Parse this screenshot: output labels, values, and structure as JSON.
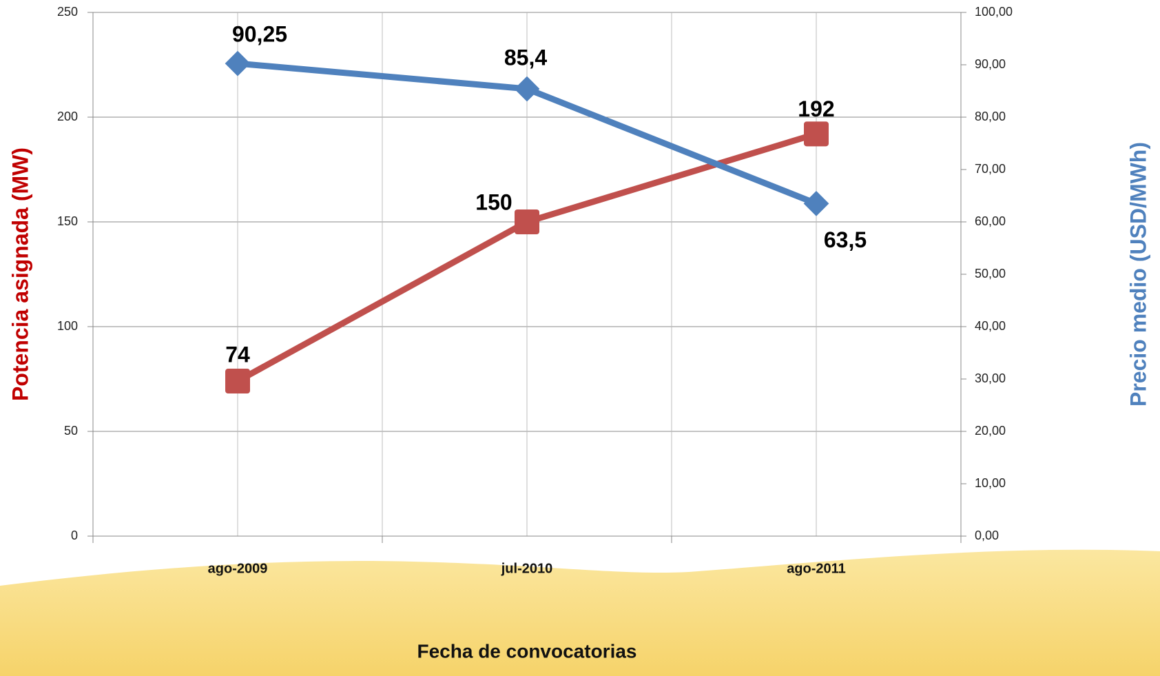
{
  "chart_data": {
    "type": "line",
    "categories": [
      "ago-2009",
      "jul-2010",
      "ago-2011"
    ],
    "xlabel": "Fecha de convocatorias",
    "ylabel": "Potencia asignada (MW)",
    "y2label": "Precio medio (USD/MWh)",
    "ylim": [
      0,
      250
    ],
    "yticks": [
      0,
      50,
      100,
      150,
      200,
      250
    ],
    "y2lim": [
      0,
      100
    ],
    "y2ticks": [
      {
        "value": 0,
        "label": "0,00"
      },
      {
        "value": 10,
        "label": "10,00"
      },
      {
        "value": 20,
        "label": "20,00"
      },
      {
        "value": 30,
        "label": "30,00"
      },
      {
        "value": 40,
        "label": "40,00"
      },
      {
        "value": 50,
        "label": "50,00"
      },
      {
        "value": 60,
        "label": "60,00"
      },
      {
        "value": 70,
        "label": "70,00"
      },
      {
        "value": 80,
        "label": "80,00"
      },
      {
        "value": 90,
        "label": "90,00"
      },
      {
        "value": 100,
        "label": "100,00"
      }
    ],
    "grid": true,
    "series": [
      {
        "name": "Potencia asignada (MW)",
        "color": "#c0504d",
        "values": [
          74,
          150,
          192
        ]
      },
      {
        "name": "Precio medio (USD/MWh)",
        "color": "#4f81bd",
        "axis": "y2",
        "values": [
          90.25,
          85.4,
          63.5
        ],
        "value_labels": [
          "90,25",
          "85,4",
          "63,5"
        ]
      }
    ]
  }
}
